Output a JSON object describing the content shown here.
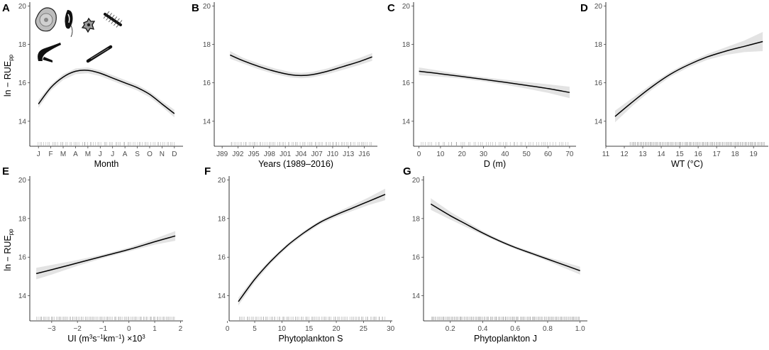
{
  "figure": {
    "panel_letters": [
      "A",
      "B",
      "C",
      "D",
      "E",
      "F",
      "G"
    ],
    "ylabel": {
      "base": "ln − RUE",
      "sub": "pp"
    }
  },
  "chart_data": [
    {
      "panel": "A",
      "type": "line",
      "xlabel": "Month",
      "ylabel": "ln − RUEpp",
      "ylim": [
        12.7,
        20.2
      ],
      "yticks": [
        14,
        16,
        18,
        20
      ],
      "xlim": [
        0.3,
        12.7
      ],
      "xticks": [
        1,
        2,
        3,
        4,
        5,
        6,
        7,
        8,
        9,
        10,
        11,
        12
      ],
      "xtick_labels": [
        "J",
        "F",
        "M",
        "A",
        "M",
        "J",
        "J",
        "A",
        "S",
        "O",
        "N",
        "D"
      ],
      "series": [
        {
          "name": "fit",
          "x": [
            1,
            2,
            3,
            4,
            5,
            6,
            7,
            8,
            9,
            10,
            11,
            12
          ],
          "y": [
            14.9,
            15.75,
            16.3,
            16.6,
            16.65,
            16.5,
            16.25,
            16.0,
            15.75,
            15.4,
            14.9,
            14.4
          ],
          "lower": [
            14.7,
            15.6,
            16.15,
            16.45,
            16.5,
            16.35,
            16.1,
            15.85,
            15.6,
            15.25,
            14.75,
            14.2
          ],
          "upper": [
            15.1,
            15.9,
            16.45,
            16.75,
            16.8,
            16.65,
            16.4,
            16.15,
            15.9,
            15.55,
            15.05,
            14.6
          ]
        }
      ],
      "rug": {
        "from": 0.9,
        "to": 12.1,
        "count": 70
      },
      "icons": [
        "diatom-icon",
        "dinoflagellate-icon",
        "star-cell-icon",
        "chain-diatom-icon",
        "curved-cell-icon",
        "rod-cell-icon"
      ]
    },
    {
      "panel": "B",
      "type": "line",
      "xlabel": "Years (1989–2016)",
      "ylabel": "ln − RUEpp",
      "ylim": [
        12.7,
        20.2
      ],
      "yticks": [
        14,
        16,
        18,
        20
      ],
      "xlim": [
        1987.5,
        2018.5
      ],
      "xticks": [
        1989,
        1992,
        1995,
        1998,
        2001,
        2004,
        2007,
        2010,
        2013,
        2016
      ],
      "xtick_labels": [
        "J89",
        "J92",
        "J95",
        "J98",
        "J01",
        "J04",
        "J07",
        "J10",
        "J13",
        "J16"
      ],
      "series": [
        {
          "name": "fit",
          "x": [
            1990.5,
            1993,
            1996,
            1999,
            2002,
            2004,
            2006,
            2009,
            2012,
            2015,
            2017.5
          ],
          "y": [
            17.45,
            17.15,
            16.85,
            16.6,
            16.42,
            16.38,
            16.42,
            16.6,
            16.85,
            17.1,
            17.35
          ],
          "lower": [
            17.25,
            17.0,
            16.7,
            16.45,
            16.28,
            16.24,
            16.28,
            16.45,
            16.68,
            16.92,
            17.15
          ],
          "upper": [
            17.65,
            17.3,
            17.0,
            16.75,
            16.56,
            16.52,
            16.56,
            16.75,
            17.02,
            17.28,
            17.55
          ]
        }
      ],
      "rug": {
        "from": 1990.5,
        "to": 2017.5,
        "count": 80
      }
    },
    {
      "panel": "C",
      "type": "line",
      "xlabel": "D (m)",
      "ylabel": "ln − RUEpp",
      "ylim": [
        12.7,
        20.2
      ],
      "yticks": [
        14,
        16,
        18,
        20
      ],
      "xlim": [
        -2.5,
        73
      ],
      "xticks": [
        0,
        10,
        20,
        30,
        40,
        50,
        60,
        70
      ],
      "xtick_labels": [
        "0",
        "10",
        "20",
        "30",
        "40",
        "50",
        "60",
        "70"
      ],
      "series": [
        {
          "name": "fit",
          "x": [
            0,
            10,
            20,
            30,
            40,
            50,
            60,
            70
          ],
          "y": [
            16.6,
            16.47,
            16.33,
            16.18,
            16.03,
            15.87,
            15.7,
            15.5
          ],
          "lower": [
            16.4,
            16.32,
            16.22,
            16.07,
            15.9,
            15.7,
            15.48,
            15.2
          ],
          "upper": [
            16.8,
            16.62,
            16.44,
            16.29,
            16.16,
            16.04,
            15.92,
            15.8
          ]
        }
      ],
      "rug": {
        "from": 0,
        "to": 70,
        "count": 60
      }
    },
    {
      "panel": "D",
      "type": "line",
      "xlabel": "WT (°C)",
      "ylabel": "ln − RUEpp",
      "ylim": [
        12.7,
        20.2
      ],
      "yticks": [
        14,
        16,
        18,
        20
      ],
      "xlim": [
        11,
        19.8
      ],
      "xticks": [
        11,
        12,
        13,
        14,
        15,
        16,
        17,
        18,
        19
      ],
      "xtick_labels": [
        "11",
        "12",
        "13",
        "14",
        "15",
        "16",
        "17",
        "18",
        "19"
      ],
      "series": [
        {
          "name": "fit",
          "x": [
            11.5,
            12.5,
            13.5,
            14.5,
            15.5,
            16.5,
            17.5,
            18.5,
            19.5
          ],
          "y": [
            14.25,
            15.05,
            15.8,
            16.45,
            16.95,
            17.35,
            17.65,
            17.9,
            18.15
          ],
          "lower": [
            13.95,
            14.85,
            15.65,
            16.32,
            16.82,
            17.2,
            17.45,
            17.6,
            17.65
          ],
          "upper": [
            14.55,
            15.25,
            15.95,
            16.58,
            17.08,
            17.5,
            17.85,
            18.2,
            18.65
          ]
        }
      ],
      "rug": {
        "from": 12.3,
        "to": 19.6,
        "count": 140
      }
    },
    {
      "panel": "E",
      "type": "line",
      "xlabel": "UI (m3s−1km−1) ×103",
      "ylabel": "ln − RUEpp",
      "ylim": [
        12.7,
        20.2
      ],
      "yticks": [
        14,
        16,
        18,
        20
      ],
      "xlim": [
        -3.85,
        2.1
      ],
      "xticks": [
        -3,
        -2,
        -1,
        0,
        1,
        2
      ],
      "xtick_labels": [
        "−3",
        "−2",
        "−1",
        "0",
        "1",
        "2"
      ],
      "series": [
        {
          "name": "fit",
          "x": [
            -3.6,
            -3,
            -2,
            -1,
            0,
            1,
            1.8
          ],
          "y": [
            15.15,
            15.35,
            15.7,
            16.05,
            16.4,
            16.8,
            17.1
          ],
          "lower": [
            14.85,
            15.1,
            15.55,
            15.95,
            16.3,
            16.65,
            16.85
          ],
          "upper": [
            15.45,
            15.6,
            15.85,
            16.15,
            16.5,
            16.95,
            17.35
          ]
        }
      ],
      "rug": {
        "from": -3.6,
        "to": 1.8,
        "count": 110
      }
    },
    {
      "panel": "F",
      "type": "line",
      "xlabel": "Phytoplankton S",
      "ylabel": "ln − RUEpp",
      "ylim": [
        12.7,
        20.2
      ],
      "yticks": [
        14,
        16,
        18,
        20
      ],
      "xlim": [
        0.3,
        30.3
      ],
      "xticks": [
        0,
        5,
        10,
        15,
        20,
        25,
        30
      ],
      "xtick_labels": [
        "0",
        "5",
        "10",
        "15",
        "20",
        "25",
        "30"
      ],
      "series": [
        {
          "name": "fit",
          "x": [
            2,
            5,
            8,
            11,
            14,
            17,
            20,
            23,
            26,
            29
          ],
          "y": [
            13.7,
            14.85,
            15.8,
            16.6,
            17.25,
            17.8,
            18.2,
            18.55,
            18.9,
            19.25
          ],
          "lower": [
            13.5,
            14.7,
            15.68,
            16.5,
            17.15,
            17.7,
            18.08,
            18.4,
            18.7,
            18.95
          ],
          "upper": [
            13.9,
            15.0,
            15.92,
            16.7,
            17.35,
            17.9,
            18.32,
            18.7,
            19.1,
            19.55
          ]
        }
      ],
      "rug": {
        "from": 2,
        "to": 29,
        "count": 100
      }
    },
    {
      "panel": "G",
      "type": "line",
      "xlabel": "Phytoplankton J",
      "ylabel": "ln − RUEpp",
      "ylim": [
        12.7,
        20.2
      ],
      "yticks": [
        14,
        16,
        18,
        20
      ],
      "xlim": [
        0.035,
        1.045
      ],
      "xticks": [
        0.2,
        0.4,
        0.6,
        0.8,
        1.0
      ],
      "xtick_labels": [
        "0.2",
        "0.4",
        "0.6",
        "0.8",
        "1.0"
      ],
      "series": [
        {
          "name": "fit",
          "x": [
            0.08,
            0.2,
            0.3,
            0.4,
            0.5,
            0.6,
            0.7,
            0.8,
            0.9,
            1.0
          ],
          "y": [
            18.75,
            18.15,
            17.7,
            17.25,
            16.85,
            16.5,
            16.2,
            15.9,
            15.6,
            15.3
          ],
          "lower": [
            18.45,
            17.95,
            17.55,
            17.15,
            16.77,
            16.42,
            16.11,
            15.8,
            15.45,
            15.1
          ],
          "upper": [
            19.05,
            18.35,
            17.85,
            17.35,
            16.93,
            16.58,
            16.29,
            16.0,
            15.75,
            15.5
          ]
        }
      ],
      "rug": {
        "from": 0.08,
        "to": 1.0,
        "count": 150
      }
    }
  ]
}
